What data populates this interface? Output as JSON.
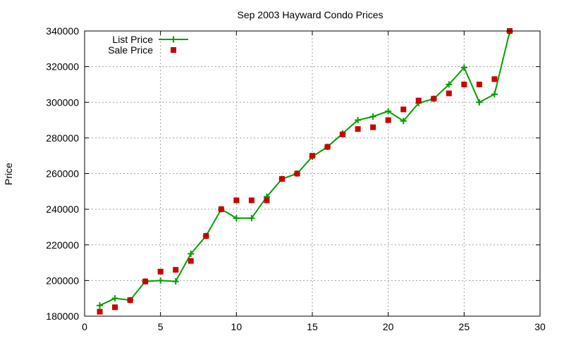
{
  "chart_data": {
    "type": "line",
    "title": "Sep 2003 Hayward Condo Prices",
    "xlabel": "",
    "ylabel": "Price",
    "xlim": [
      0,
      30
    ],
    "ylim": [
      180000,
      340000
    ],
    "x_ticks": [
      0,
      5,
      10,
      15,
      20,
      25,
      30
    ],
    "y_ticks": [
      180000,
      200000,
      220000,
      240000,
      260000,
      280000,
      300000,
      320000,
      340000
    ],
    "grid": true,
    "legend_position": "top-left",
    "series": [
      {
        "name": "List Price",
        "style": "line-with-plus-markers",
        "color": "#00a000",
        "points": [
          [
            1,
            186000
          ],
          [
            2,
            190000
          ],
          [
            3,
            189000
          ],
          [
            4,
            199500
          ],
          [
            5,
            200000
          ],
          [
            6,
            199500
          ],
          [
            7,
            215000
          ],
          [
            8,
            225000
          ],
          [
            9,
            240000
          ],
          [
            10,
            235000
          ],
          [
            11,
            235000
          ],
          [
            12,
            247000
          ],
          [
            13,
            257000
          ],
          [
            14,
            260000
          ],
          [
            15,
            269500
          ],
          [
            16,
            275000
          ],
          [
            17,
            282500
          ],
          [
            18,
            290000
          ],
          [
            19,
            292000
          ],
          [
            20,
            295000
          ],
          [
            21,
            289500
          ],
          [
            22,
            299500
          ],
          [
            23,
            302000
          ],
          [
            24,
            310000
          ],
          [
            25,
            319500
          ],
          [
            26,
            300000
          ],
          [
            27,
            304500
          ],
          [
            28,
            339500
          ]
        ]
      },
      {
        "name": "Sale Price",
        "style": "square-markers",
        "color": "#cc0000",
        "points": [
          [
            1,
            182500
          ],
          [
            2,
            185000
          ],
          [
            3,
            189000
          ],
          [
            4,
            199500
          ],
          [
            5,
            205000
          ],
          [
            6,
            206000
          ],
          [
            7,
            211000
          ],
          [
            8,
            225000
          ],
          [
            9,
            240000
          ],
          [
            10,
            245000
          ],
          [
            11,
            245000
          ],
          [
            12,
            245000
          ],
          [
            13,
            257000
          ],
          [
            14,
            260000
          ],
          [
            15,
            270000
          ],
          [
            16,
            275000
          ],
          [
            17,
            282000
          ],
          [
            18,
            285000
          ],
          [
            19,
            286000
          ],
          [
            20,
            290000
          ],
          [
            21,
            296000
          ],
          [
            22,
            301000
          ],
          [
            23,
            302000
          ],
          [
            24,
            305000
          ],
          [
            25,
            310000
          ],
          [
            26,
            310000
          ],
          [
            27,
            313000
          ],
          [
            28,
            340000
          ]
        ]
      }
    ]
  }
}
